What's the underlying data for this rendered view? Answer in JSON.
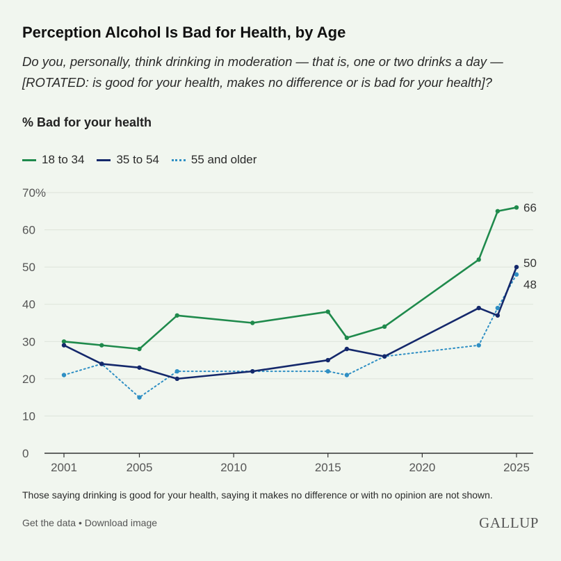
{
  "title": "Perception Alcohol Is Bad for Health, by Age",
  "question": "Do you, personally, think drinking in moderation — that is, one or two drinks a day — [ROTATED: is good for your health, makes no difference or is bad for your health]?",
  "measure": "% Bad for your health",
  "footnote": "Those saying drinking is good for your health, saying it makes no difference or with no opinion are not shown.",
  "links": {
    "get_data": "Get the data",
    "separator": " • ",
    "download": "Download image"
  },
  "logo": "GALLUP",
  "colors": {
    "18_34": "#1f8a4c",
    "35_54": "#14286b",
    "55plus": "#2f8fc4",
    "grid": "#dde3da",
    "axis": "#333333"
  },
  "chart_data": {
    "type": "line",
    "title": "Perception Alcohol Is Bad for Health, by Age",
    "ylabel": "% Bad for your health",
    "xlim": [
      2001,
      2025
    ],
    "ylim": [
      0,
      70
    ],
    "x_ticks": [
      2001,
      2005,
      2010,
      2015,
      2020,
      2025
    ],
    "y_ticks": [
      0,
      10,
      20,
      30,
      40,
      50,
      60,
      70
    ],
    "y_tick_labels": [
      "0",
      "10",
      "20",
      "30",
      "40",
      "50",
      "60",
      "70%"
    ],
    "grid": "horizontal",
    "legend": "top-left",
    "series": [
      {
        "name": "18 to 34",
        "style": "solid",
        "points": [
          [
            2001,
            30
          ],
          [
            2003,
            29
          ],
          [
            2005,
            28
          ],
          [
            2007,
            37
          ],
          [
            2011,
            35
          ],
          [
            2015,
            38
          ],
          [
            2016,
            31
          ],
          [
            2018,
            34
          ],
          [
            2023,
            52
          ],
          [
            2024,
            65
          ],
          [
            2025,
            66
          ]
        ],
        "end_label": "66"
      },
      {
        "name": "35 to 54",
        "style": "solid",
        "points": [
          [
            2001,
            29
          ],
          [
            2003,
            24
          ],
          [
            2005,
            23
          ],
          [
            2007,
            20
          ],
          [
            2011,
            22
          ],
          [
            2015,
            25
          ],
          [
            2016,
            28
          ],
          [
            2018,
            26
          ],
          [
            2023,
            39
          ],
          [
            2024,
            37
          ],
          [
            2025,
            50
          ]
        ],
        "end_label": "50"
      },
      {
        "name": "55 and older",
        "style": "dotted",
        "points": [
          [
            2001,
            21
          ],
          [
            2003,
            24
          ],
          [
            2005,
            15
          ],
          [
            2007,
            22
          ],
          [
            2011,
            22
          ],
          [
            2015,
            22
          ],
          [
            2016,
            21
          ],
          [
            2018,
            26
          ],
          [
            2023,
            29
          ],
          [
            2024,
            39
          ],
          [
            2025,
            48
          ]
        ],
        "end_label": "48"
      }
    ]
  }
}
